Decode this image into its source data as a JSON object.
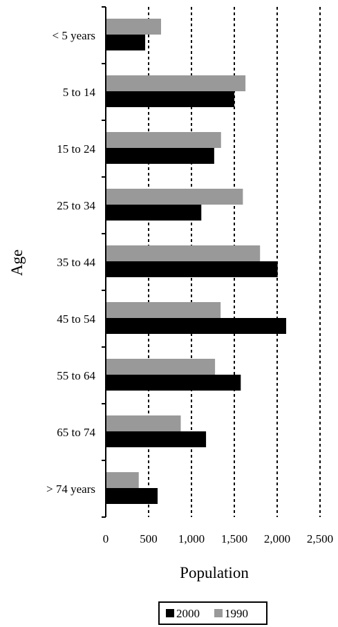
{
  "chart_data": {
    "type": "bar",
    "orientation": "horizontal",
    "categories": [
      "< 5 years",
      "5 to 14",
      "15 to 24",
      "25 to 34",
      "35 to 44",
      "45 to 54",
      "55 to 64",
      "65 to 74",
      "> 74 years"
    ],
    "series": [
      {
        "name": "1990",
        "color": "#999999",
        "values": [
          645,
          1630,
          1345,
          1600,
          1800,
          1340,
          1275,
          875,
          385
        ]
      },
      {
        "name": "2000",
        "color": "#000000",
        "values": [
          460,
          1500,
          1265,
          1115,
          2005,
          2105,
          1575,
          1170,
          605
        ]
      }
    ],
    "xlabel": "Population",
    "ylabel": "Age",
    "xlim": [
      0,
      2500
    ],
    "xticks": [
      0,
      500,
      1000,
      1500,
      2000,
      2500
    ],
    "xtick_labels": [
      "0",
      "500",
      "1,000",
      "1,500",
      "2,000",
      "2,500"
    ],
    "grid": "vertical dotted",
    "legend": {
      "position": "bottom",
      "order": [
        "2000",
        "1990"
      ]
    }
  }
}
